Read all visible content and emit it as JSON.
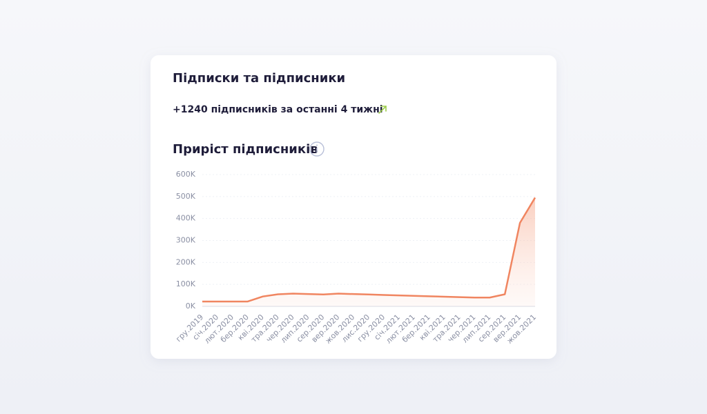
{
  "card": {
    "title": "Підписки та підписники",
    "summary": "+1240 підписників за останні  4 тижні",
    "section_title": "Приріст підписників"
  },
  "chart_data": {
    "type": "area",
    "categories": [
      "гру.2019",
      "січ.2020",
      "лют.2020",
      "бер.2020",
      "кві.2020",
      "тра.2020",
      "чер.2020",
      "лип.2020",
      "сер.2020",
      "вер.2020",
      "жов.2020",
      "лис.2020",
      "гру.2020",
      "січ.2021",
      "лют.2021",
      "бер.2021",
      "кві.2021",
      "тра.2021",
      "чер.2021",
      "лип.2021",
      "сер.2021",
      "вер.2021",
      "жов.2021"
    ],
    "values": [
      22000,
      22000,
      22000,
      22000,
      45000,
      55000,
      58000,
      56000,
      54000,
      58000,
      56000,
      54000,
      52000,
      50000,
      48000,
      46000,
      44000,
      42000,
      40000,
      40000,
      55000,
      380000,
      495000
    ],
    "color": "#f08560",
    "ylim": [
      0,
      600000
    ],
    "yticks": [
      {
        "value": 0,
        "label": "0K"
      },
      {
        "value": 100000,
        "label": "100K"
      },
      {
        "value": 200000,
        "label": "200K"
      },
      {
        "value": 300000,
        "label": "300K"
      },
      {
        "value": 400000,
        "label": "400K"
      },
      {
        "value": 500000,
        "label": "500K"
      },
      {
        "value": 600000,
        "label": "600K"
      }
    ],
    "grid": true
  }
}
